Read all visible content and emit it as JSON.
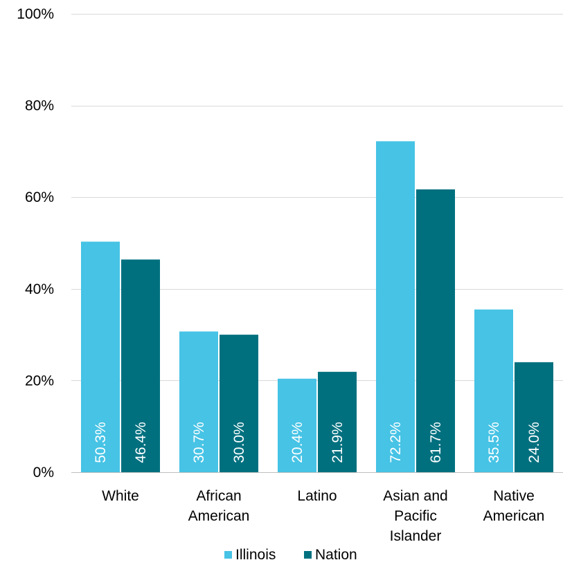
{
  "chart_data": {
    "type": "bar",
    "categories": [
      [
        "White"
      ],
      [
        "African",
        "American"
      ],
      [
        "Latino"
      ],
      [
        "Asian and",
        "Pacific",
        "Islander"
      ],
      [
        "Native",
        "American"
      ]
    ],
    "series": [
      {
        "name": "Illinois",
        "color": "#46c3e5",
        "values": [
          50.3,
          30.7,
          20.4,
          72.2,
          35.5
        ],
        "labels": [
          "50.3%",
          "30.7%",
          "20.4%",
          "72.2%",
          "35.5%"
        ]
      },
      {
        "name": "Nation",
        "color": "#00707f",
        "values": [
          46.4,
          30.0,
          21.9,
          61.7,
          24.0
        ],
        "labels": [
          "46.4%",
          "30.0%",
          "21.9%",
          "61.7%",
          "24.0%"
        ]
      }
    ],
    "ylim": [
      0,
      100
    ],
    "yticks": [
      0,
      20,
      40,
      60,
      80,
      100
    ],
    "ytick_labels": [
      "0%",
      "20%",
      "40%",
      "60%",
      "80%",
      "100%"
    ],
    "grid": true,
    "legend_position": "bottom"
  }
}
